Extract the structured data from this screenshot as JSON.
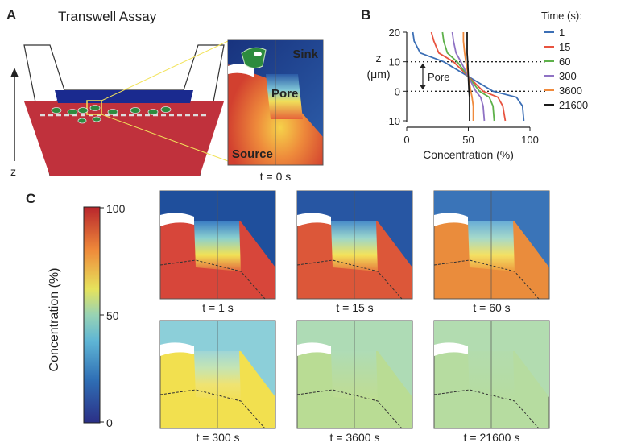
{
  "panels": {
    "a": {
      "letter": "A",
      "title": "Transwell Assay",
      "axis": "z",
      "inset": {
        "sink": "Sink",
        "pore": "Pore",
        "source": "Source",
        "caption": "t = 0 s"
      }
    },
    "b": {
      "letter": "B",
      "legend_title": "Time (s):"
    },
    "c": {
      "letter": "C",
      "colorbar": {
        "label": "Concentration (%)",
        "ticks": [
          "100",
          "50",
          "0"
        ]
      },
      "snapshots": [
        {
          "caption": "t = 1 s",
          "sink": "#1f4f9c",
          "source": "#d7463a",
          "pore": [
            "#3d7fc4",
            "#8ad0cf",
            "#f2e255",
            "#e2653d"
          ]
        },
        {
          "caption": "t = 15 s",
          "sink": "#2756a3",
          "source": "#dc5739",
          "pore": [
            "#4a8ec9",
            "#9bd6cc",
            "#f4e35a",
            "#e6783c"
          ]
        },
        {
          "caption": "t = 60 s",
          "sink": "#3a74b8",
          "source": "#ea8c3c",
          "pore": [
            "#6aaed6",
            "#a5d9cb",
            "#f4e163",
            "#ee9a3e"
          ]
        },
        {
          "caption": "t = 300 s",
          "sink": "#8ccfd9",
          "source": "#f2e04f",
          "pore": [
            "#9fd6d6",
            "#c4e4b4",
            "#efe372",
            "#f2df54"
          ]
        },
        {
          "caption": "t = 3600 s",
          "sink": "#aedbb5",
          "source": "#b9dc94",
          "pore": [
            "#afdcb6",
            "#b4dca8",
            "#bbdc9c",
            "#bede93"
          ]
        },
        {
          "caption": "t = 21600 s",
          "sink": "#b2dcb0",
          "source": "#b6dca0",
          "pore": [
            "#b3dcad",
            "#b4dca9",
            "#b5dca4",
            "#b6dc9f"
          ]
        }
      ]
    }
  },
  "chart_data": {
    "type": "line",
    "title": "",
    "xlabel": "Concentration (%)",
    "ylabel": "z\n(μm)",
    "xlim": [
      0,
      100
    ],
    "ylim": [
      -10,
      20
    ],
    "xticks": [
      0,
      50,
      100
    ],
    "yticks": [
      -10,
      0,
      10,
      20
    ],
    "grid": false,
    "legend_position": "right",
    "annotations": [
      {
        "text": "Pore",
        "between_z": [
          0,
          10
        ]
      }
    ],
    "reference_lines": [
      {
        "orientation": "horizontal",
        "z": 10,
        "style": "dotted"
      },
      {
        "orientation": "horizontal",
        "z": 0,
        "style": "dotted"
      }
    ],
    "series": [
      {
        "name": "1",
        "color": "#3c6fb5",
        "x": [
          95,
          94,
          89,
          70,
          50,
          30,
          11,
          6,
          5
        ],
        "z": [
          -10,
          -5,
          -2,
          0,
          5,
          10,
          13,
          17,
          20
        ]
      },
      {
        "name": "15",
        "color": "#e8533f",
        "x": [
          80,
          78,
          74,
          62,
          50,
          38,
          26,
          22,
          20
        ],
        "z": [
          -10,
          -5,
          -2,
          0,
          5,
          10,
          13,
          17,
          20
        ]
      },
      {
        "name": "60",
        "color": "#5eb14a",
        "x": [
          71,
          70,
          67,
          59,
          50,
          41,
          33,
          30,
          29
        ],
        "z": [
          -10,
          -5,
          -2,
          0,
          5,
          10,
          13,
          17,
          20
        ]
      },
      {
        "name": "300",
        "color": "#8f72c4",
        "x": [
          63,
          62,
          60,
          56,
          50,
          44,
          40,
          38,
          37
        ],
        "z": [
          -10,
          -5,
          -2,
          0,
          5,
          10,
          13,
          17,
          20
        ]
      },
      {
        "name": "3600",
        "color": "#f08a3c",
        "x": [
          54,
          54,
          53,
          52,
          50,
          48,
          47,
          46,
          46
        ],
        "z": [
          -10,
          -5,
          -2,
          0,
          5,
          10,
          13,
          17,
          20
        ]
      },
      {
        "name": "21600",
        "color": "#1a1a1a",
        "x": [
          51,
          51,
          51,
          50.5,
          50,
          49.5,
          49,
          49,
          49
        ],
        "z": [
          -10,
          -5,
          -2,
          0,
          5,
          10,
          13,
          17,
          20
        ]
      }
    ]
  }
}
